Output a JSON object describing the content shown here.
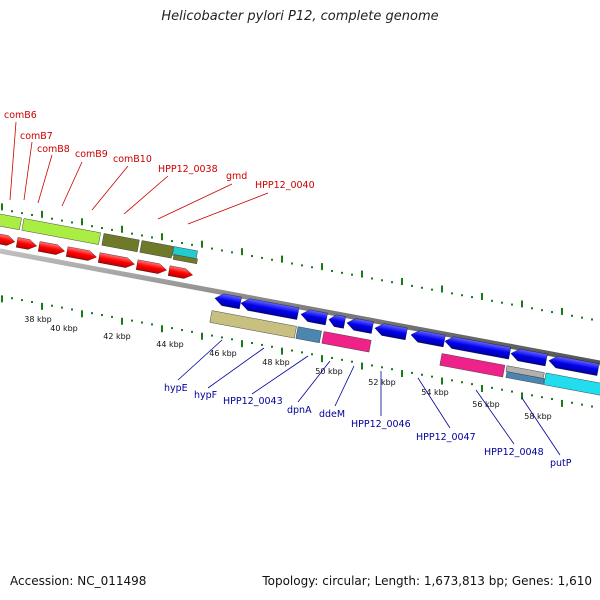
{
  "title": "Helicobacter pylori P12, complete genome",
  "accession_label": "Accession:",
  "accession": "NC_011498",
  "topology_label": "Topology:",
  "topology": "circular",
  "length_label": "Length:",
  "length": "1,673,813 bp",
  "genes_label": "Genes:",
  "genes": "1,610",
  "colors": {
    "forward_gene": "#ff0000",
    "reverse_gene": "#0000ff",
    "top_label": "#cc0000",
    "bottom_label": "#000099",
    "tick": "#1a7a1a",
    "backbone": "#808080",
    "cog_lime": "#aaee44",
    "cog_olive": "#6e7a2a",
    "cog_teal": "#22cccc",
    "cog_khaki": "#c8c080",
    "cog_steel": "#4a86b0",
    "cog_pink": "#ee2288",
    "cog_grey": "#b0b0b0",
    "cog_cyan": "#22ddee"
  },
  "ticks": [
    {
      "label": "38 kbp"
    },
    {
      "label": "40 kbp"
    },
    {
      "label": "42 kbp"
    },
    {
      "label": "44 kbp"
    },
    {
      "label": "46 kbp"
    },
    {
      "label": "48 kbp"
    },
    {
      "label": "50 kbp"
    },
    {
      "label": "52 kbp"
    },
    {
      "label": "54 kbp"
    },
    {
      "label": "56 kbp"
    },
    {
      "label": "58 kbp"
    }
  ],
  "top_genes": [
    {
      "name": "comB6"
    },
    {
      "name": "comB7"
    },
    {
      "name": "comB8"
    },
    {
      "name": "comB9"
    },
    {
      "name": "comB10"
    },
    {
      "name": "HPP12_0038"
    },
    {
      "name": "gmd"
    },
    {
      "name": "HPP12_0040"
    }
  ],
  "bottom_genes": [
    {
      "name": "hypE"
    },
    {
      "name": "hypF"
    },
    {
      "name": "HPP12_0043"
    },
    {
      "name": "dpnA"
    },
    {
      "name": "ddeM"
    },
    {
      "name": "HPP12_0046"
    },
    {
      "name": "HPP12_0047"
    },
    {
      "name": "HPP12_0048"
    },
    {
      "name": "putP"
    }
  ]
}
